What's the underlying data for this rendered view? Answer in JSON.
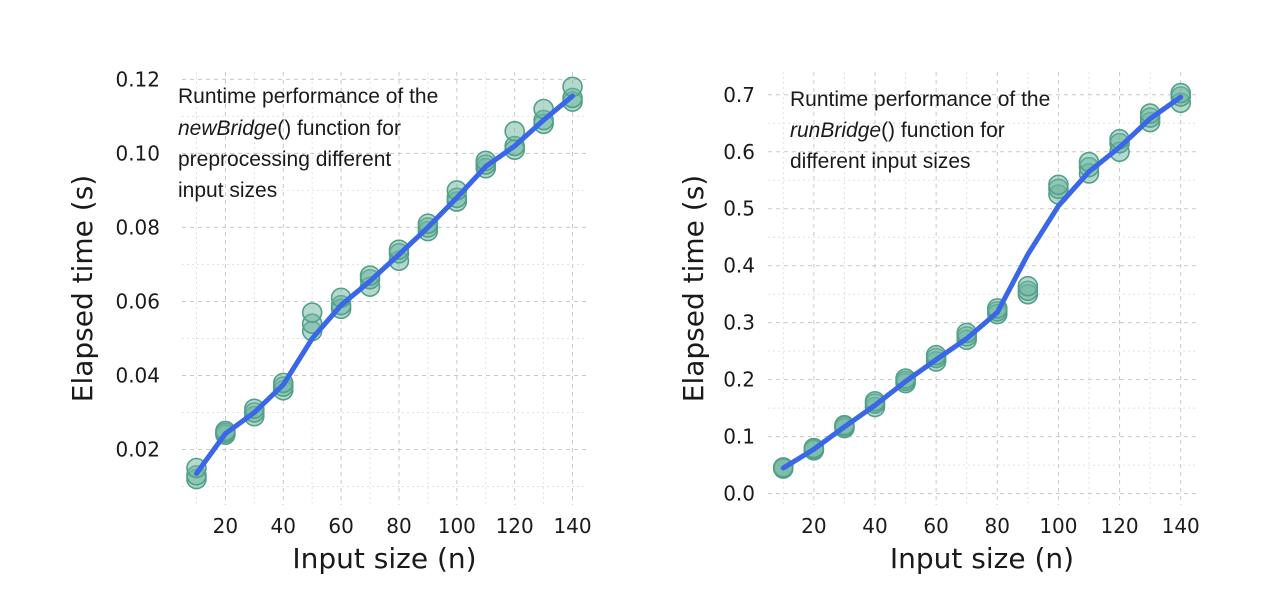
{
  "chart_data": [
    {
      "type": "scatter",
      "title": "",
      "xlabel": "Input size (n)",
      "ylabel": "Elapsed time (s)",
      "xlim": [
        5,
        145
      ],
      "ylim": [
        0.005,
        0.122
      ],
      "x_ticks": [
        20,
        40,
        60,
        80,
        100,
        120,
        140
      ],
      "y_ticks": [
        0.02,
        0.04,
        0.06,
        0.08,
        0.1,
        0.12
      ],
      "y_tick_labels": [
        "0.02",
        "0.04",
        "0.06",
        "0.08",
        "0.10",
        "0.12"
      ],
      "annotation": {
        "line1": "Runtime performance of the",
        "func_name": "newBridge",
        "func_suffix": "() function for",
        "line3": "preprocessing different",
        "line4": "input sizes"
      },
      "points": {
        "x": [
          10,
          10,
          10,
          20,
          20,
          20,
          30,
          30,
          30,
          40,
          40,
          40,
          50,
          50,
          50,
          60,
          60,
          60,
          70,
          70,
          70,
          80,
          80,
          80,
          90,
          90,
          90,
          100,
          100,
          100,
          110,
          110,
          110,
          120,
          120,
          120,
          130,
          130,
          130,
          140,
          140,
          140
        ],
        "y": [
          0.012,
          0.013,
          0.015,
          0.024,
          0.0245,
          0.025,
          0.029,
          0.03,
          0.031,
          0.036,
          0.037,
          0.038,
          0.052,
          0.054,
          0.057,
          0.058,
          0.059,
          0.061,
          0.064,
          0.066,
          0.067,
          0.071,
          0.073,
          0.074,
          0.079,
          0.08,
          0.081,
          0.087,
          0.088,
          0.09,
          0.096,
          0.097,
          0.098,
          0.101,
          0.102,
          0.106,
          0.108,
          0.109,
          0.112,
          0.114,
          0.115,
          0.118
        ]
      },
      "trend": {
        "x": [
          10,
          20,
          30,
          40,
          50,
          60,
          70,
          80,
          90,
          100,
          110,
          120,
          130,
          140
        ],
        "y": [
          0.0135,
          0.0243,
          0.03,
          0.0375,
          0.05,
          0.059,
          0.0655,
          0.0727,
          0.08,
          0.088,
          0.0965,
          0.102,
          0.109,
          0.1155
        ]
      },
      "colors": {
        "point": "#6bb39e",
        "point_edge": "#52a088",
        "trend": "#3a66e8",
        "band": "#c4c4c4"
      }
    },
    {
      "type": "scatter",
      "title": "",
      "xlabel": "Input size (n)",
      "ylabel": "Elapsed time (s)",
      "xlim": [
        5,
        145
      ],
      "ylim": [
        -0.02,
        0.74
      ],
      "x_ticks": [
        20,
        40,
        60,
        80,
        100,
        120,
        140
      ],
      "y_ticks": [
        0.0,
        0.1,
        0.2,
        0.3,
        0.4,
        0.5,
        0.6,
        0.7
      ],
      "y_tick_labels": [
        "0.0",
        "0.1",
        "0.2",
        "0.3",
        "0.4",
        "0.5",
        "0.6",
        "0.7"
      ],
      "annotation": {
        "line1": "Runtime performance of the",
        "func_name": "runBridge",
        "func_suffix": "() function for",
        "line3": "different input sizes",
        "line4": ""
      },
      "points": {
        "x": [
          10,
          10,
          10,
          20,
          20,
          20,
          30,
          30,
          30,
          40,
          40,
          40,
          50,
          50,
          50,
          60,
          60,
          60,
          70,
          70,
          70,
          80,
          80,
          80,
          90,
          90,
          90,
          100,
          100,
          100,
          110,
          110,
          110,
          120,
          120,
          120,
          130,
          130,
          130,
          140,
          140,
          140
        ],
        "y": [
          0.044,
          0.045,
          0.046,
          0.076,
          0.078,
          0.08,
          0.115,
          0.118,
          0.12,
          0.152,
          0.158,
          0.162,
          0.194,
          0.198,
          0.202,
          0.232,
          0.238,
          0.243,
          0.27,
          0.276,
          0.282,
          0.315,
          0.32,
          0.325,
          0.35,
          0.356,
          0.364,
          0.525,
          0.535,
          0.542,
          0.562,
          0.573,
          0.582,
          0.6,
          0.615,
          0.622,
          0.652,
          0.66,
          0.667,
          0.686,
          0.697,
          0.703
        ]
      },
      "trend": {
        "x": [
          10,
          20,
          30,
          40,
          50,
          60,
          70,
          80,
          90,
          100,
          110,
          120,
          130,
          140
        ],
        "y": [
          0.045,
          0.078,
          0.117,
          0.155,
          0.197,
          0.235,
          0.272,
          0.318,
          0.42,
          0.505,
          0.565,
          0.608,
          0.658,
          0.696
        ]
      },
      "colors": {
        "point": "#6bb39e",
        "point_edge": "#52a088",
        "trend": "#3a66e8",
        "band": "#c4c4c4"
      }
    }
  ]
}
